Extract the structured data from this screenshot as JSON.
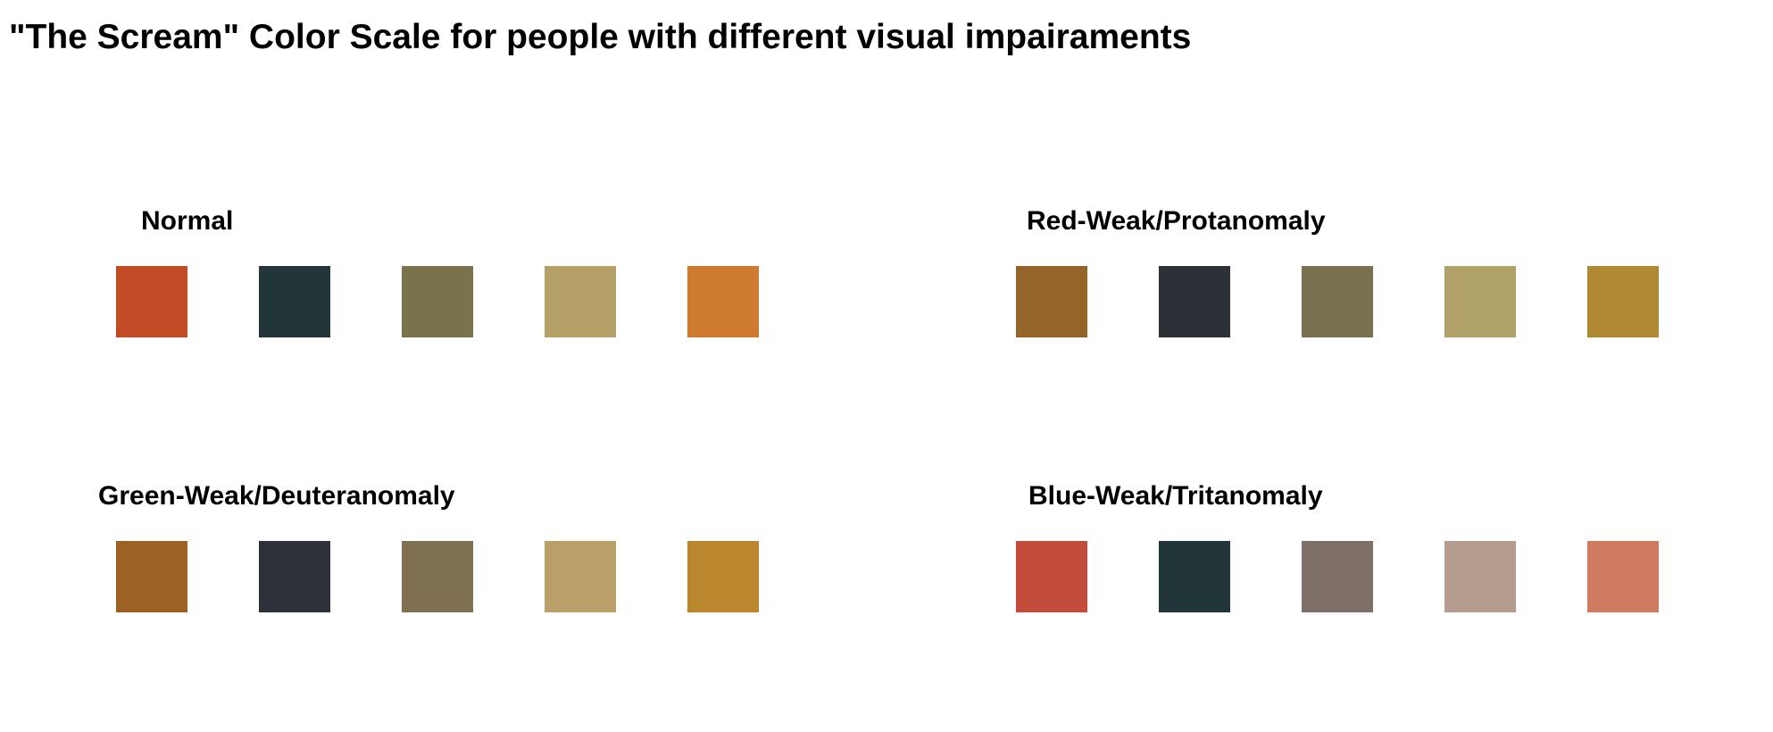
{
  "title": "\"The Scream\" Color Scale for people with different visual impairaments",
  "panels": [
    {
      "id": "normal",
      "label": "Normal",
      "colors": [
        "#C24B26",
        "#22363A",
        "#79724C",
        "#B5A067",
        "#CE7A31"
      ]
    },
    {
      "id": "protanomaly",
      "label": "Red-Weak/Protanomaly",
      "colors": [
        "#946428",
        "#2B3136",
        "#79704F",
        "#B0A168",
        "#B08A32"
      ]
    },
    {
      "id": "deuteranomaly",
      "label": "Green-Weak/Deuteranomaly",
      "colors": [
        "#9C6223",
        "#2C313A",
        "#7E7050",
        "#BA9F69",
        "#BA862E"
      ]
    },
    {
      "id": "tritanomaly",
      "label": "Blue-Weak/Tritanomaly",
      "colors": [
        "#C24B39",
        "#22363A",
        "#7E7068",
        "#B69C8E",
        "#D07A5F"
      ]
    }
  ]
}
